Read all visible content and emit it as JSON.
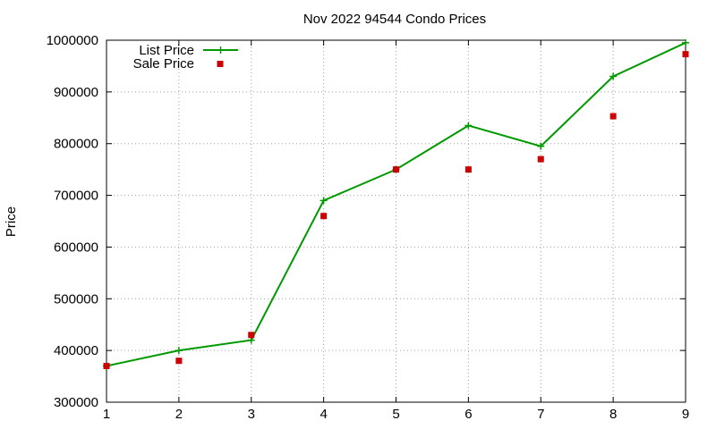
{
  "chart_data": {
    "type": "line",
    "title": "Nov 2022 94544 Condo Prices",
    "xlabel": "",
    "ylabel": "Price",
    "x": [
      1,
      2,
      3,
      4,
      5,
      6,
      7,
      8,
      9
    ],
    "xlim": [
      1,
      9
    ],
    "ylim": [
      300000,
      1000000
    ],
    "xticks": [
      "1",
      "2",
      "3",
      "4",
      "5",
      "6",
      "7",
      "8",
      "9"
    ],
    "yticks": [
      "300000",
      "400000",
      "500000",
      "600000",
      "700000",
      "800000",
      "900000",
      "1000000"
    ],
    "grid": true,
    "legend_position": "top-left",
    "series": [
      {
        "name": "List Price",
        "style": "line-with-plus-markers",
        "color": "#009900",
        "values": [
          370000,
          400000,
          420000,
          690000,
          750000,
          835000,
          795000,
          930000,
          995000
        ]
      },
      {
        "name": "Sale Price",
        "style": "square-markers",
        "color": "#cc0000",
        "values": [
          370000,
          380000,
          430000,
          660000,
          750000,
          750000,
          770000,
          853000,
          973000
        ]
      }
    ]
  }
}
